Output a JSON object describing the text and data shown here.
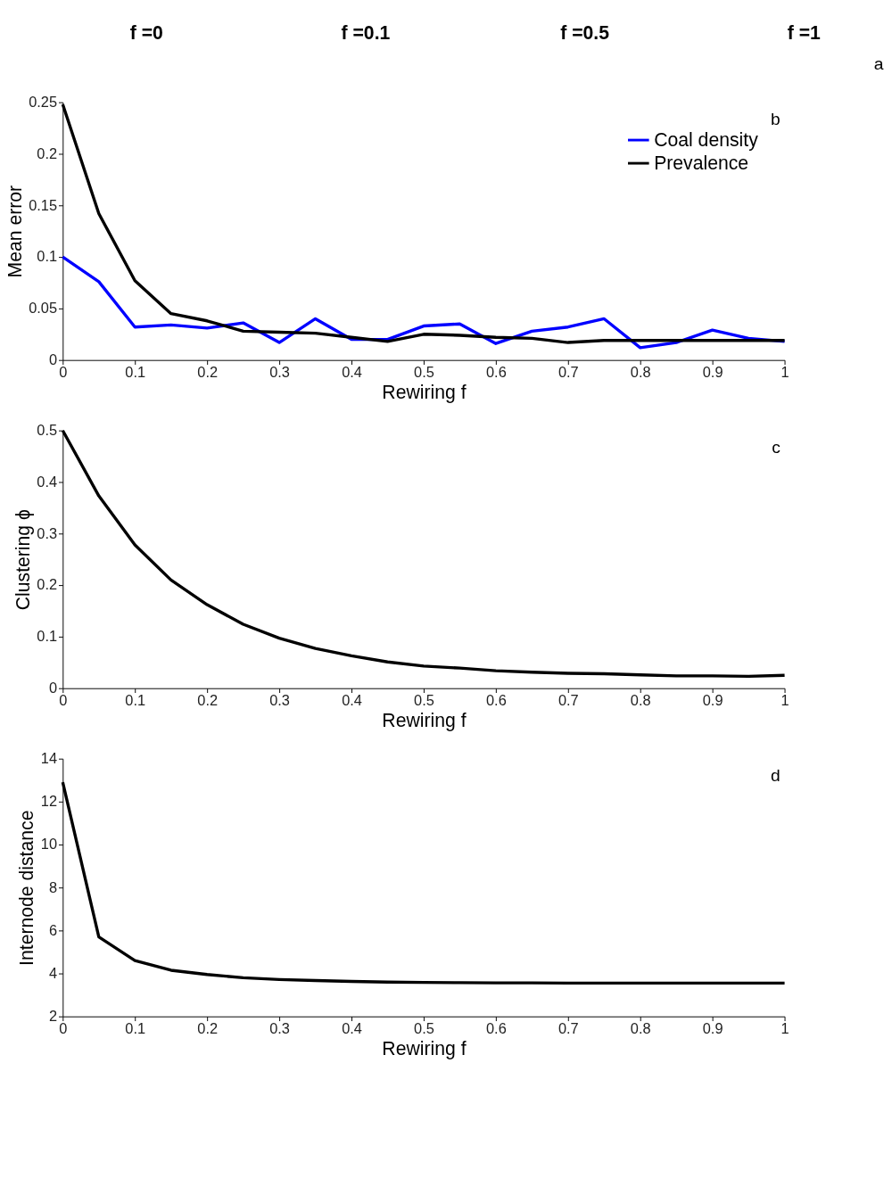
{
  "chart_data": [
    {
      "type": "other",
      "title": "f =0"
    },
    {
      "type": "other",
      "title": "f =0.1"
    },
    {
      "type": "other",
      "title": "f =0.5"
    },
    {
      "type": "other",
      "title": "f =1",
      "annotations": [
        "a"
      ]
    },
    {
      "type": "line",
      "xlabel": "Rewiring f",
      "ylabel": "Mean error",
      "annotations": [
        "b"
      ],
      "legend": "top right",
      "xlim": [
        0,
        1
      ],
      "ylim": [
        0,
        0.25
      ],
      "xticks": [
        0,
        0.1,
        0.2,
        0.3,
        0.4,
        0.5,
        0.6,
        0.7,
        0.8,
        0.9,
        1
      ],
      "yticks": [
        0,
        0.05,
        0.1,
        0.15,
        0.2,
        0.25
      ],
      "x": [
        0,
        0.05,
        0.1,
        0.15,
        0.2,
        0.25,
        0.3,
        0.35,
        0.4,
        0.45,
        0.5,
        0.55,
        0.6,
        0.65,
        0.7,
        0.75,
        0.8,
        0.85,
        0.9,
        0.95,
        1
      ],
      "series": [
        {
          "name": "Coal density",
          "color": "#0000ff",
          "values": [
            0.1,
            0.076,
            0.032,
            0.034,
            0.031,
            0.036,
            0.017,
            0.04,
            0.02,
            0.02,
            0.033,
            0.035,
            0.016,
            0.028,
            0.032,
            0.04,
            0.012,
            0.017,
            0.029,
            0.021,
            0.018
          ]
        },
        {
          "name": "Prevalence",
          "color": "#000000",
          "values": [
            0.248,
            0.142,
            0.077,
            0.045,
            0.038,
            0.028,
            0.027,
            0.026,
            0.022,
            0.018,
            0.025,
            0.024,
            0.022,
            0.021,
            0.017,
            0.019,
            0.019,
            0.019,
            0.019,
            0.019,
            0.019
          ]
        }
      ]
    },
    {
      "type": "line",
      "xlabel": "Rewiring f",
      "ylabel": "Clustering ϕ",
      "annotations": [
        "c"
      ],
      "xlim": [
        0,
        1
      ],
      "ylim": [
        0,
        0.5
      ],
      "xticks": [
        0,
        0.1,
        0.2,
        0.3,
        0.4,
        0.5,
        0.6,
        0.7,
        0.8,
        0.9,
        1
      ],
      "yticks": [
        0,
        0.1,
        0.2,
        0.3,
        0.4,
        0.5
      ],
      "x": [
        0,
        0.05,
        0.1,
        0.15,
        0.2,
        0.25,
        0.3,
        0.35,
        0.4,
        0.45,
        0.5,
        0.55,
        0.6,
        0.65,
        0.7,
        0.75,
        0.8,
        0.85,
        0.9,
        0.95,
        1
      ],
      "series": [
        {
          "color": "#000000",
          "values": [
            0.5,
            0.373,
            0.278,
            0.21,
            0.162,
            0.124,
            0.097,
            0.077,
            0.063,
            0.051,
            0.043,
            0.039,
            0.034,
            0.031,
            0.029,
            0.028,
            0.026,
            0.024,
            0.024,
            0.023,
            0.025
          ]
        }
      ]
    },
    {
      "type": "line",
      "xlabel": "Rewiring f",
      "ylabel": "Internode distance",
      "annotations": [
        "d"
      ],
      "xlim": [
        0,
        1
      ],
      "ylim": [
        2,
        14
      ],
      "xticks": [
        0,
        0.1,
        0.2,
        0.3,
        0.4,
        0.5,
        0.6,
        0.7,
        0.8,
        0.9,
        1
      ],
      "yticks": [
        2,
        4,
        6,
        8,
        10,
        12,
        14
      ],
      "x": [
        0,
        0.05,
        0.1,
        0.15,
        0.2,
        0.25,
        0.3,
        0.35,
        0.4,
        0.45,
        0.5,
        0.55,
        0.6,
        0.65,
        0.7,
        0.75,
        0.8,
        0.85,
        0.9,
        0.95,
        1
      ],
      "series": [
        {
          "color": "#000000",
          "values": [
            12.9,
            5.7,
            4.6,
            4.15,
            3.95,
            3.8,
            3.72,
            3.67,
            3.63,
            3.6,
            3.58,
            3.57,
            3.56,
            3.56,
            3.55,
            3.55,
            3.55,
            3.55,
            3.55,
            3.55,
            3.55
          ]
        }
      ]
    }
  ]
}
